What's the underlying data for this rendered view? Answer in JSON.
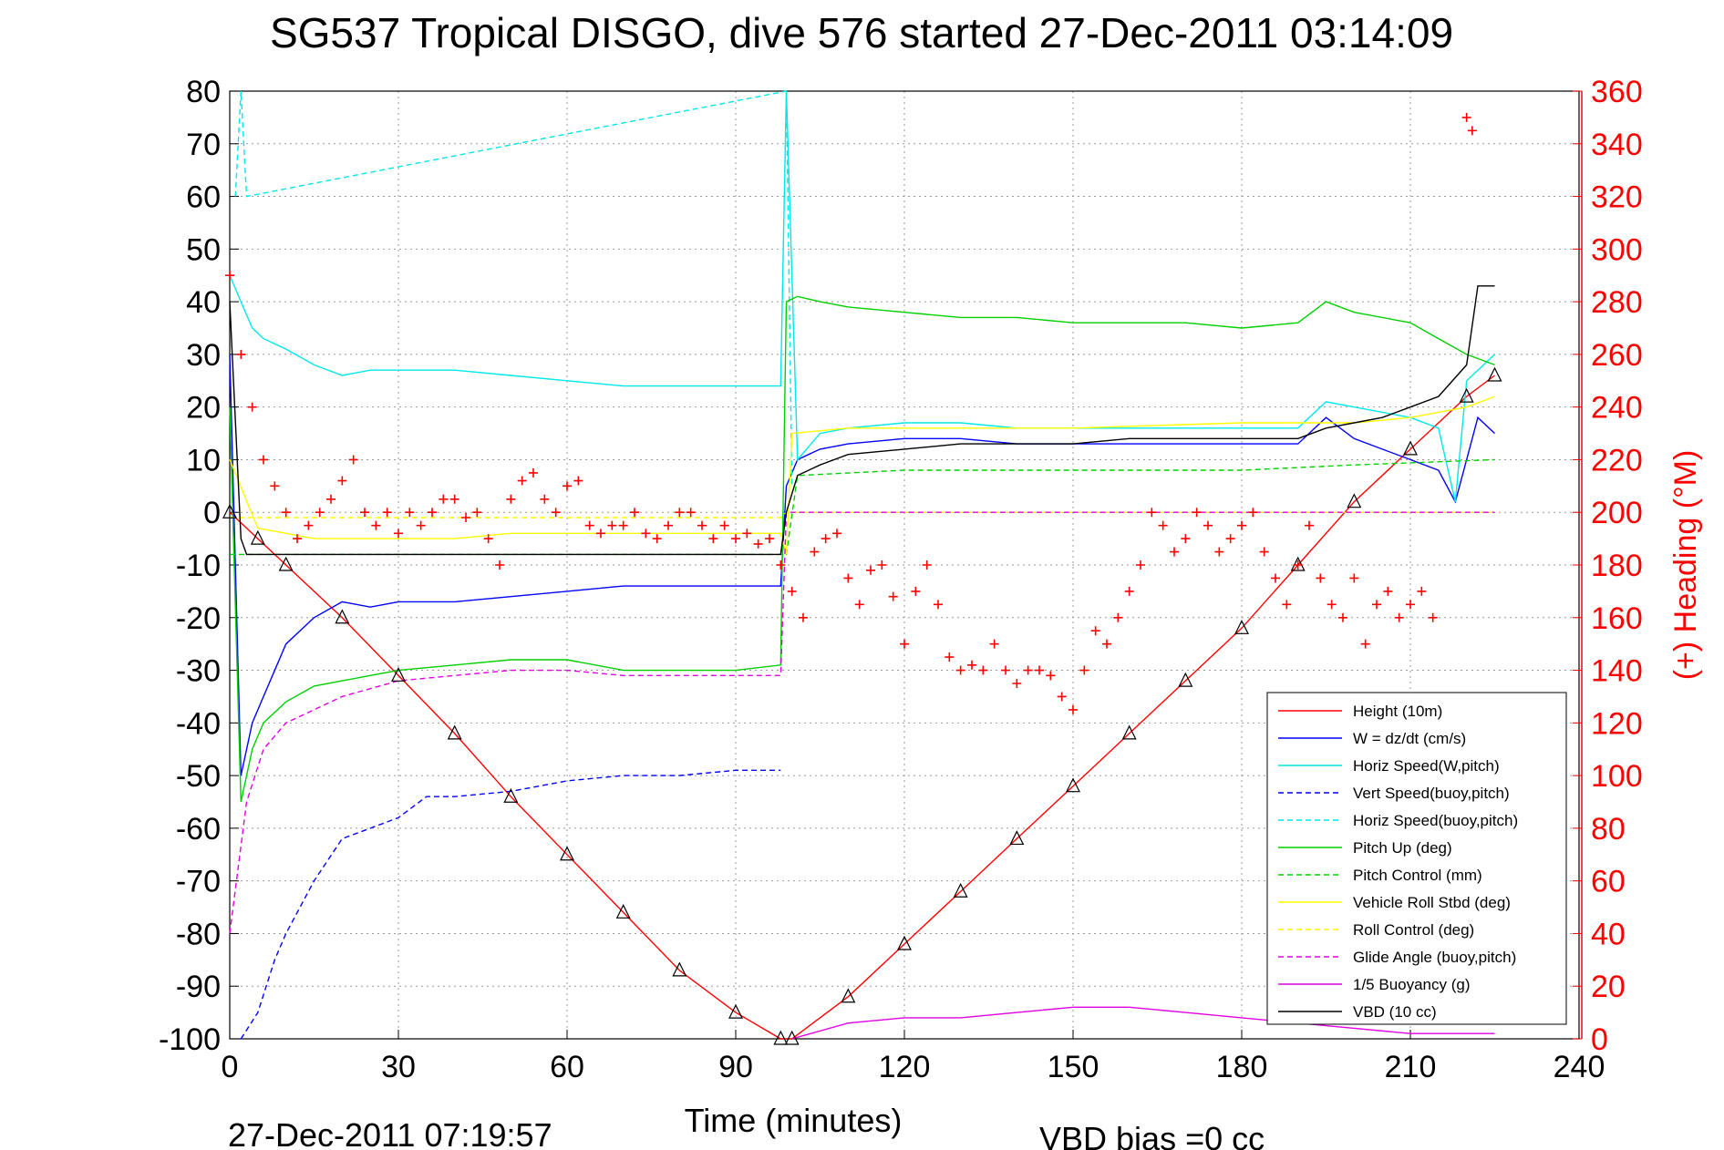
{
  "chart_data": {
    "type": "line",
    "title": "SG537 Tropical DISGO, dive 576 started 27-Dec-2011 03:14:09",
    "xlabel": "Time (minutes)",
    "ylabel": "",
    "y2label": "(+) Heading (°M)",
    "xlim": [
      0,
      240
    ],
    "ylim": [
      -100,
      80
    ],
    "y2lim": [
      0,
      360
    ],
    "xticks": [
      "0",
      "30",
      "60",
      "90",
      "120",
      "150",
      "180",
      "210",
      "240"
    ],
    "yticks": [
      "80",
      "70",
      "60",
      "50",
      "40",
      "30",
      "20",
      "10",
      "0",
      "-10",
      "-20",
      "-30",
      "-40",
      "-50",
      "-60",
      "-70",
      "-80",
      "-90",
      "-100"
    ],
    "y2ticks": [
      "360",
      "340",
      "320",
      "300",
      "280",
      "260",
      "240",
      "220",
      "200",
      "180",
      "160",
      "140",
      "120",
      "100",
      "80",
      "60",
      "40",
      "20",
      "0"
    ],
    "grid": true,
    "legend_position": "bottom-right",
    "colors": {
      "height": "#ff0000",
      "w": "#0000ff",
      "horiz_speed": "#00e8e8",
      "vert_speed_buoy": "#0000ff",
      "horiz_speed_buoy": "#00e8e8",
      "pitch_up": "#00d000",
      "pitch_control": "#00d000",
      "roll": "#ffff00",
      "roll_control": "#ffff00",
      "glide_angle": "#e000e0",
      "buoyancy": "#e000e0",
      "vbd": "#000000",
      "heading": "#ff0000",
      "right_axis": "#ff0000"
    },
    "legend": [
      {
        "label": "Height (10m)",
        "color": "#ff0000",
        "dash": "solid"
      },
      {
        "label": "W = dz/dt (cm/s)",
        "color": "#0000ff",
        "dash": "solid"
      },
      {
        "label": "Horiz Speed(W,pitch)",
        "color": "#00e8e8",
        "dash": "solid"
      },
      {
        "label": "Vert Speed(buoy,pitch)",
        "color": "#0000ff",
        "dash": "dashed"
      },
      {
        "label": "Horiz Speed(buoy,pitch)",
        "color": "#00e8e8",
        "dash": "dashed"
      },
      {
        "label": "Pitch Up (deg)",
        "color": "#00d000",
        "dash": "solid"
      },
      {
        "label": "Pitch Control (mm)",
        "color": "#00d000",
        "dash": "dashed"
      },
      {
        "label": "Vehicle Roll Stbd (deg)",
        "color": "#ffff00",
        "dash": "solid"
      },
      {
        "label": "Roll Control (deg)",
        "color": "#ffff00",
        "dash": "dashed"
      },
      {
        "label": "Glide Angle (buoy,pitch)",
        "color": "#e000e0",
        "dash": "dashed"
      },
      {
        "label": "1/5 Buoyancy (g)",
        "color": "#e000e0",
        "dash": "solid"
      },
      {
        "label": "VBD (10 cc)",
        "color": "#000000",
        "dash": "solid"
      }
    ],
    "series": [
      {
        "key": "height",
        "x": [
          0,
          5,
          10,
          20,
          30,
          40,
          50,
          60,
          70,
          80,
          90,
          98,
          100,
          110,
          120,
          130,
          140,
          150,
          160,
          170,
          180,
          190,
          200,
          210,
          220,
          225
        ],
        "y": [
          0,
          -5,
          -10,
          -20,
          -31,
          -42,
          -54,
          -65,
          -76,
          -87,
          -95,
          -100,
          -100,
          -92,
          -82,
          -72,
          -62,
          -52,
          -42,
          -32,
          -22,
          -10,
          2,
          12,
          22,
          26
        ]
      },
      {
        "key": "w",
        "x": [
          0,
          2,
          4,
          6,
          10,
          15,
          20,
          25,
          30,
          40,
          50,
          60,
          70,
          80,
          90,
          98,
          99,
          101,
          105,
          110,
          120,
          130,
          140,
          150,
          160,
          170,
          180,
          190,
          195,
          200,
          205,
          210,
          215,
          218,
          220,
          222,
          225
        ],
        "y": [
          30,
          -50,
          -40,
          -35,
          -25,
          -20,
          -17,
          -18,
          -17,
          -17,
          -16,
          -15,
          -14,
          -14,
          -14,
          -14,
          5,
          10,
          12,
          13,
          14,
          14,
          13,
          13,
          13,
          13,
          13,
          13,
          18,
          14,
          12,
          10,
          8,
          2,
          10,
          18,
          15
        ]
      },
      {
        "key": "horiz_speed",
        "x": [
          0,
          2,
          4,
          6,
          10,
          15,
          20,
          25,
          30,
          40,
          50,
          60,
          70,
          80,
          90,
          98,
          99,
          101,
          105,
          110,
          120,
          130,
          140,
          150,
          160,
          170,
          180,
          190,
          195,
          200,
          210,
          215,
          218,
          220,
          225
        ],
        "y": [
          45,
          40,
          35,
          33,
          31,
          28,
          26,
          27,
          27,
          27,
          26,
          25,
          24,
          24,
          24,
          24,
          80,
          10,
          15,
          16,
          17,
          17,
          16,
          16,
          16,
          16,
          16,
          16,
          21,
          20,
          18,
          16,
          2,
          25,
          30
        ]
      },
      {
        "key": "vert_speed_buoy",
        "dash": true,
        "x": [
          2,
          5,
          8,
          10,
          15,
          20,
          25,
          30,
          35,
          40,
          50,
          55,
          60,
          70,
          80,
          90,
          98
        ],
        "y": [
          -100,
          -95,
          -85,
          -80,
          -70,
          -62,
          -60,
          -58,
          -54,
          -54,
          -53,
          -52,
          -51,
          -50,
          -50,
          -49,
          -49
        ]
      },
      {
        "key": "horiz_speed_buoy",
        "dash": true,
        "x": [
          1,
          2,
          3,
          99,
          100
        ],
        "y": [
          60,
          80,
          60,
          80,
          5
        ]
      },
      {
        "key": "pitch_up",
        "x": [
          0,
          2,
          4,
          6,
          10,
          15,
          20,
          25,
          30,
          40,
          50,
          60,
          70,
          80,
          90,
          98,
          99,
          101,
          105,
          110,
          120,
          130,
          140,
          150,
          160,
          170,
          180,
          190,
          195,
          200,
          210,
          215,
          220,
          225
        ],
        "y": [
          20,
          -55,
          -45,
          -40,
          -36,
          -33,
          -32,
          -31,
          -30,
          -29,
          -28,
          -28,
          -30,
          -30,
          -30,
          -29,
          40,
          41,
          40,
          39,
          38,
          37,
          37,
          36,
          36,
          36,
          35,
          36,
          40,
          38,
          36,
          33,
          30,
          28
        ]
      },
      {
        "key": "pitch_control",
        "dash": true,
        "x": [
          0,
          3,
          99,
          101,
          120,
          150,
          180,
          200,
          225
        ],
        "y": [
          -8,
          -8,
          -8,
          7,
          8,
          8,
          8,
          9,
          10
        ]
      },
      {
        "key": "roll",
        "x": [
          0,
          5,
          10,
          15,
          20,
          30,
          40,
          50,
          60,
          70,
          80,
          90,
          98,
          99,
          100,
          110,
          120,
          150,
          180,
          200,
          210,
          220,
          225
        ],
        "y": [
          10,
          -3,
          -4,
          -5,
          -5,
          -5,
          -5,
          -4,
          -4,
          -4,
          -4,
          -4,
          -4,
          -8,
          15,
          16,
          16,
          16,
          17,
          17,
          18,
          20,
          22
        ]
      },
      {
        "key": "roll_control",
        "dash": true,
        "x": [
          0,
          98,
          99,
          225
        ],
        "y": [
          -1,
          -1,
          0,
          0
        ]
      },
      {
        "key": "glide_angle",
        "dash": true,
        "x": [
          0,
          3,
          6,
          10,
          20,
          30,
          40,
          50,
          60,
          70,
          80,
          90,
          98,
          99,
          225
        ],
        "y": [
          -80,
          -55,
          -45,
          -40,
          -35,
          -32,
          -31,
          -30,
          -30,
          -31,
          -31,
          -31,
          -31,
          0,
          0
        ]
      },
      {
        "key": "buoyancy",
        "x": [
          100,
          110,
          120,
          130,
          140,
          150,
          160,
          170,
          180,
          190,
          200,
          210,
          220,
          225
        ],
        "y": [
          -100,
          -97,
          -96,
          -96,
          -95,
          -94,
          -94,
          -95,
          -96,
          -97,
          -98,
          -99,
          -99,
          -99
        ]
      },
      {
        "key": "vbd",
        "x": [
          0,
          2,
          3,
          98,
          99,
          101,
          105,
          110,
          120,
          130,
          140,
          150,
          160,
          170,
          180,
          190,
          195,
          200,
          205,
          210,
          215,
          220,
          222,
          225
        ],
        "y": [
          40,
          -5,
          -8,
          -8,
          0,
          7,
          9,
          11,
          12,
          13,
          13,
          13,
          14,
          14,
          14,
          14,
          16,
          17,
          18,
          20,
          22,
          28,
          43,
          43
        ]
      }
    ],
    "heading": {
      "axis": "right",
      "marker": "+",
      "x": [
        0,
        2,
        4,
        6,
        8,
        10,
        12,
        14,
        16,
        18,
        20,
        22,
        24,
        26,
        28,
        30,
        32,
        34,
        36,
        38,
        40,
        42,
        44,
        46,
        48,
        50,
        52,
        54,
        56,
        58,
        60,
        62,
        64,
        66,
        68,
        70,
        72,
        74,
        76,
        78,
        80,
        82,
        84,
        86,
        88,
        90,
        92,
        94,
        96,
        98,
        100,
        102,
        104,
        106,
        108,
        110,
        112,
        114,
        116,
        118,
        120,
        122,
        124,
        126,
        128,
        130,
        132,
        134,
        136,
        138,
        140,
        142,
        144,
        146,
        148,
        150,
        152,
        154,
        156,
        158,
        160,
        162,
        164,
        166,
        168,
        170,
        172,
        174,
        176,
        178,
        180,
        182,
        184,
        186,
        188,
        190,
        192,
        194,
        196,
        198,
        200,
        202,
        204,
        206,
        208,
        210,
        212,
        214,
        220,
        221
      ],
      "y": [
        290,
        260,
        240,
        220,
        210,
        200,
        190,
        195,
        200,
        205,
        212,
        220,
        200,
        195,
        200,
        192,
        200,
        195,
        200,
        205,
        205,
        198,
        200,
        190,
        180,
        205,
        212,
        215,
        205,
        200,
        210,
        212,
        195,
        192,
        195,
        195,
        200,
        192,
        190,
        195,
        200,
        200,
        195,
        190,
        195,
        190,
        192,
        188,
        190,
        180,
        170,
        160,
        185,
        190,
        192,
        175,
        165,
        178,
        180,
        168,
        150,
        170,
        180,
        165,
        145,
        140,
        142,
        140,
        150,
        140,
        135,
        140,
        140,
        138,
        130,
        125,
        140,
        155,
        150,
        160,
        170,
        180,
        200,
        195,
        185,
        190,
        200,
        195,
        185,
        190,
        195,
        200,
        185,
        175,
        165,
        180,
        195,
        175,
        165,
        160,
        175,
        150,
        165,
        170,
        160,
        165,
        170,
        160,
        350,
        345
      ]
    }
  },
  "annotations": {
    "datetime": "27-Dec-2011 07:19:57",
    "vbd_bias": "VBD bias =0 cc"
  }
}
